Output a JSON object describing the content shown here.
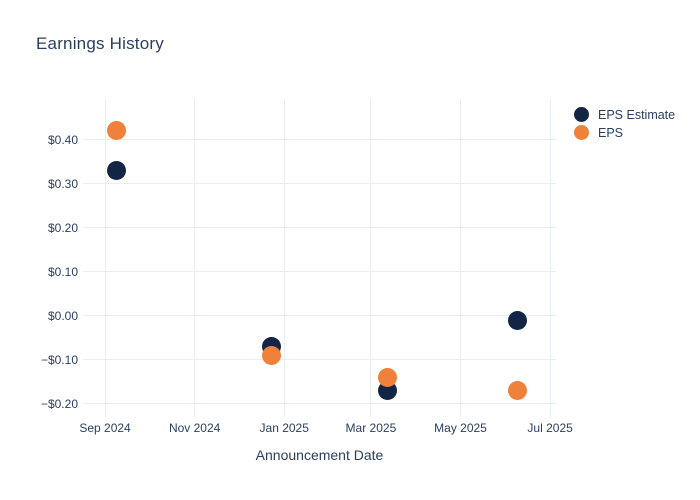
{
  "chart_data": {
    "type": "scatter",
    "title": "Earnings History",
    "xlabel": "Announcement Date",
    "ylabel": "",
    "legend_position": "right-top",
    "grid": true,
    "ylim": [
      -0.23,
      0.49
    ],
    "xlim": [
      "2024-08-17",
      "2025-07-05"
    ],
    "y_ticks": [
      {
        "value": 0.4,
        "label": "$0.40"
      },
      {
        "value": 0.3,
        "label": "$0.30"
      },
      {
        "value": 0.2,
        "label": "$0.20"
      },
      {
        "value": 0.1,
        "label": "$0.10"
      },
      {
        "value": 0.0,
        "label": "$0.00"
      },
      {
        "value": -0.1,
        "label": "−$0.10"
      },
      {
        "value": -0.2,
        "label": "−$0.20"
      }
    ],
    "x_ticks": [
      {
        "date": "2024-09-01",
        "label": "Sep 2024"
      },
      {
        "date": "2024-11-01",
        "label": "Nov 2024"
      },
      {
        "date": "2025-01-01",
        "label": "Jan 2025"
      },
      {
        "date": "2025-03-01",
        "label": "Mar 2025"
      },
      {
        "date": "2025-05-01",
        "label": "May 2025"
      },
      {
        "date": "2025-07-01",
        "label": "Jul 2025"
      }
    ],
    "series": [
      {
        "name": "EPS Estimate",
        "color": "#132544",
        "points": [
          {
            "date": "2024-09-09",
            "value": 0.33
          },
          {
            "date": "2024-12-23",
            "value": -0.07
          },
          {
            "date": "2025-03-12",
            "value": -0.17
          },
          {
            "date": "2025-06-09",
            "value": -0.01
          }
        ]
      },
      {
        "name": "EPS",
        "color": "#f0813a",
        "points": [
          {
            "date": "2024-09-09",
            "value": 0.42
          },
          {
            "date": "2024-12-23",
            "value": -0.09
          },
          {
            "date": "2025-03-12",
            "value": -0.14
          },
          {
            "date": "2025-06-09",
            "value": -0.17
          }
        ]
      }
    ],
    "colors": {
      "eps_estimate": "#132544",
      "eps": "#f0813a",
      "grid": "#e9eef6",
      "text": "#2a3f5f",
      "background": "#ffffff"
    }
  }
}
